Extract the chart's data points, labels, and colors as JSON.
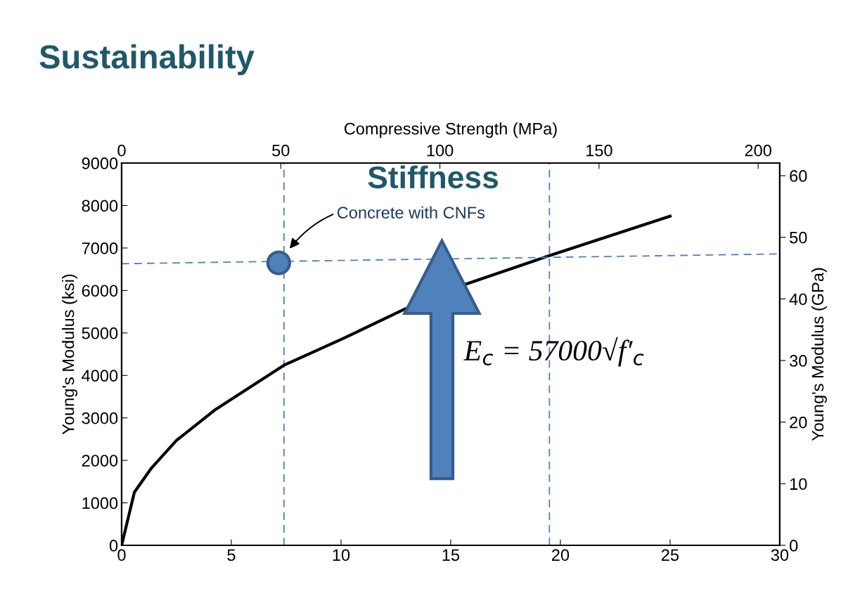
{
  "chart_data": {
    "type": "line",
    "xlim": [
      0,
      30
    ],
    "xticks": [
      0,
      5,
      10,
      15,
      20,
      25,
      30
    ],
    "ylim": [
      0,
      9000
    ],
    "yticks": [
      0,
      1000,
      2000,
      3000,
      4000,
      5000,
      6000,
      7000,
      8000,
      9000
    ],
    "ylabel": "Young's Modulus (ksi)",
    "x2lim": [
      0,
      206.8
    ],
    "x2ticks": [
      0,
      50,
      100,
      150,
      200
    ],
    "x2label": "Compressive Strength (MPa)",
    "y2lim": [
      0,
      62.05
    ],
    "y2ticks": [
      0,
      10,
      20,
      30,
      40,
      50,
      60
    ],
    "y2label": "Young's Modulus (GPa)",
    "grid": false,
    "marker": "none",
    "series": [
      {
        "color": "#000000",
        "line_style": "solid",
        "x": [
          0,
          0.58,
          1.33,
          2.5,
          4.23,
          7.4,
          10.1,
          12.9,
          15.7,
          19.5,
          25.0
        ],
        "values": [
          0,
          1250,
          1800,
          2470,
          3180,
          4240,
          4870,
          5560,
          6150,
          6820,
          7750
        ]
      },
      {
        "color": "#4f81bd",
        "line_style": "dashed",
        "x": [
          0,
          30
        ],
        "values": [
          6630,
          6860
        ]
      },
      {
        "type": "scatter",
        "color": "#4f81bd",
        "marker": "circle",
        "x": [
          7.16
        ],
        "values": [
          6650
        ]
      }
    ],
    "ref_lines": [
      {
        "axis": "x",
        "value": 7.4,
        "color": "#4f81bd",
        "line_style": "dashed"
      },
      {
        "axis": "x",
        "value": 19.5,
        "color": "#4f81bd",
        "line_style": "dashed"
      }
    ],
    "annotations": [
      "Sustainability",
      "Stiffness",
      "E$_{c}$ = 57000√f′$_{c}$",
      "Concrete with CNFs"
    ]
  }
}
